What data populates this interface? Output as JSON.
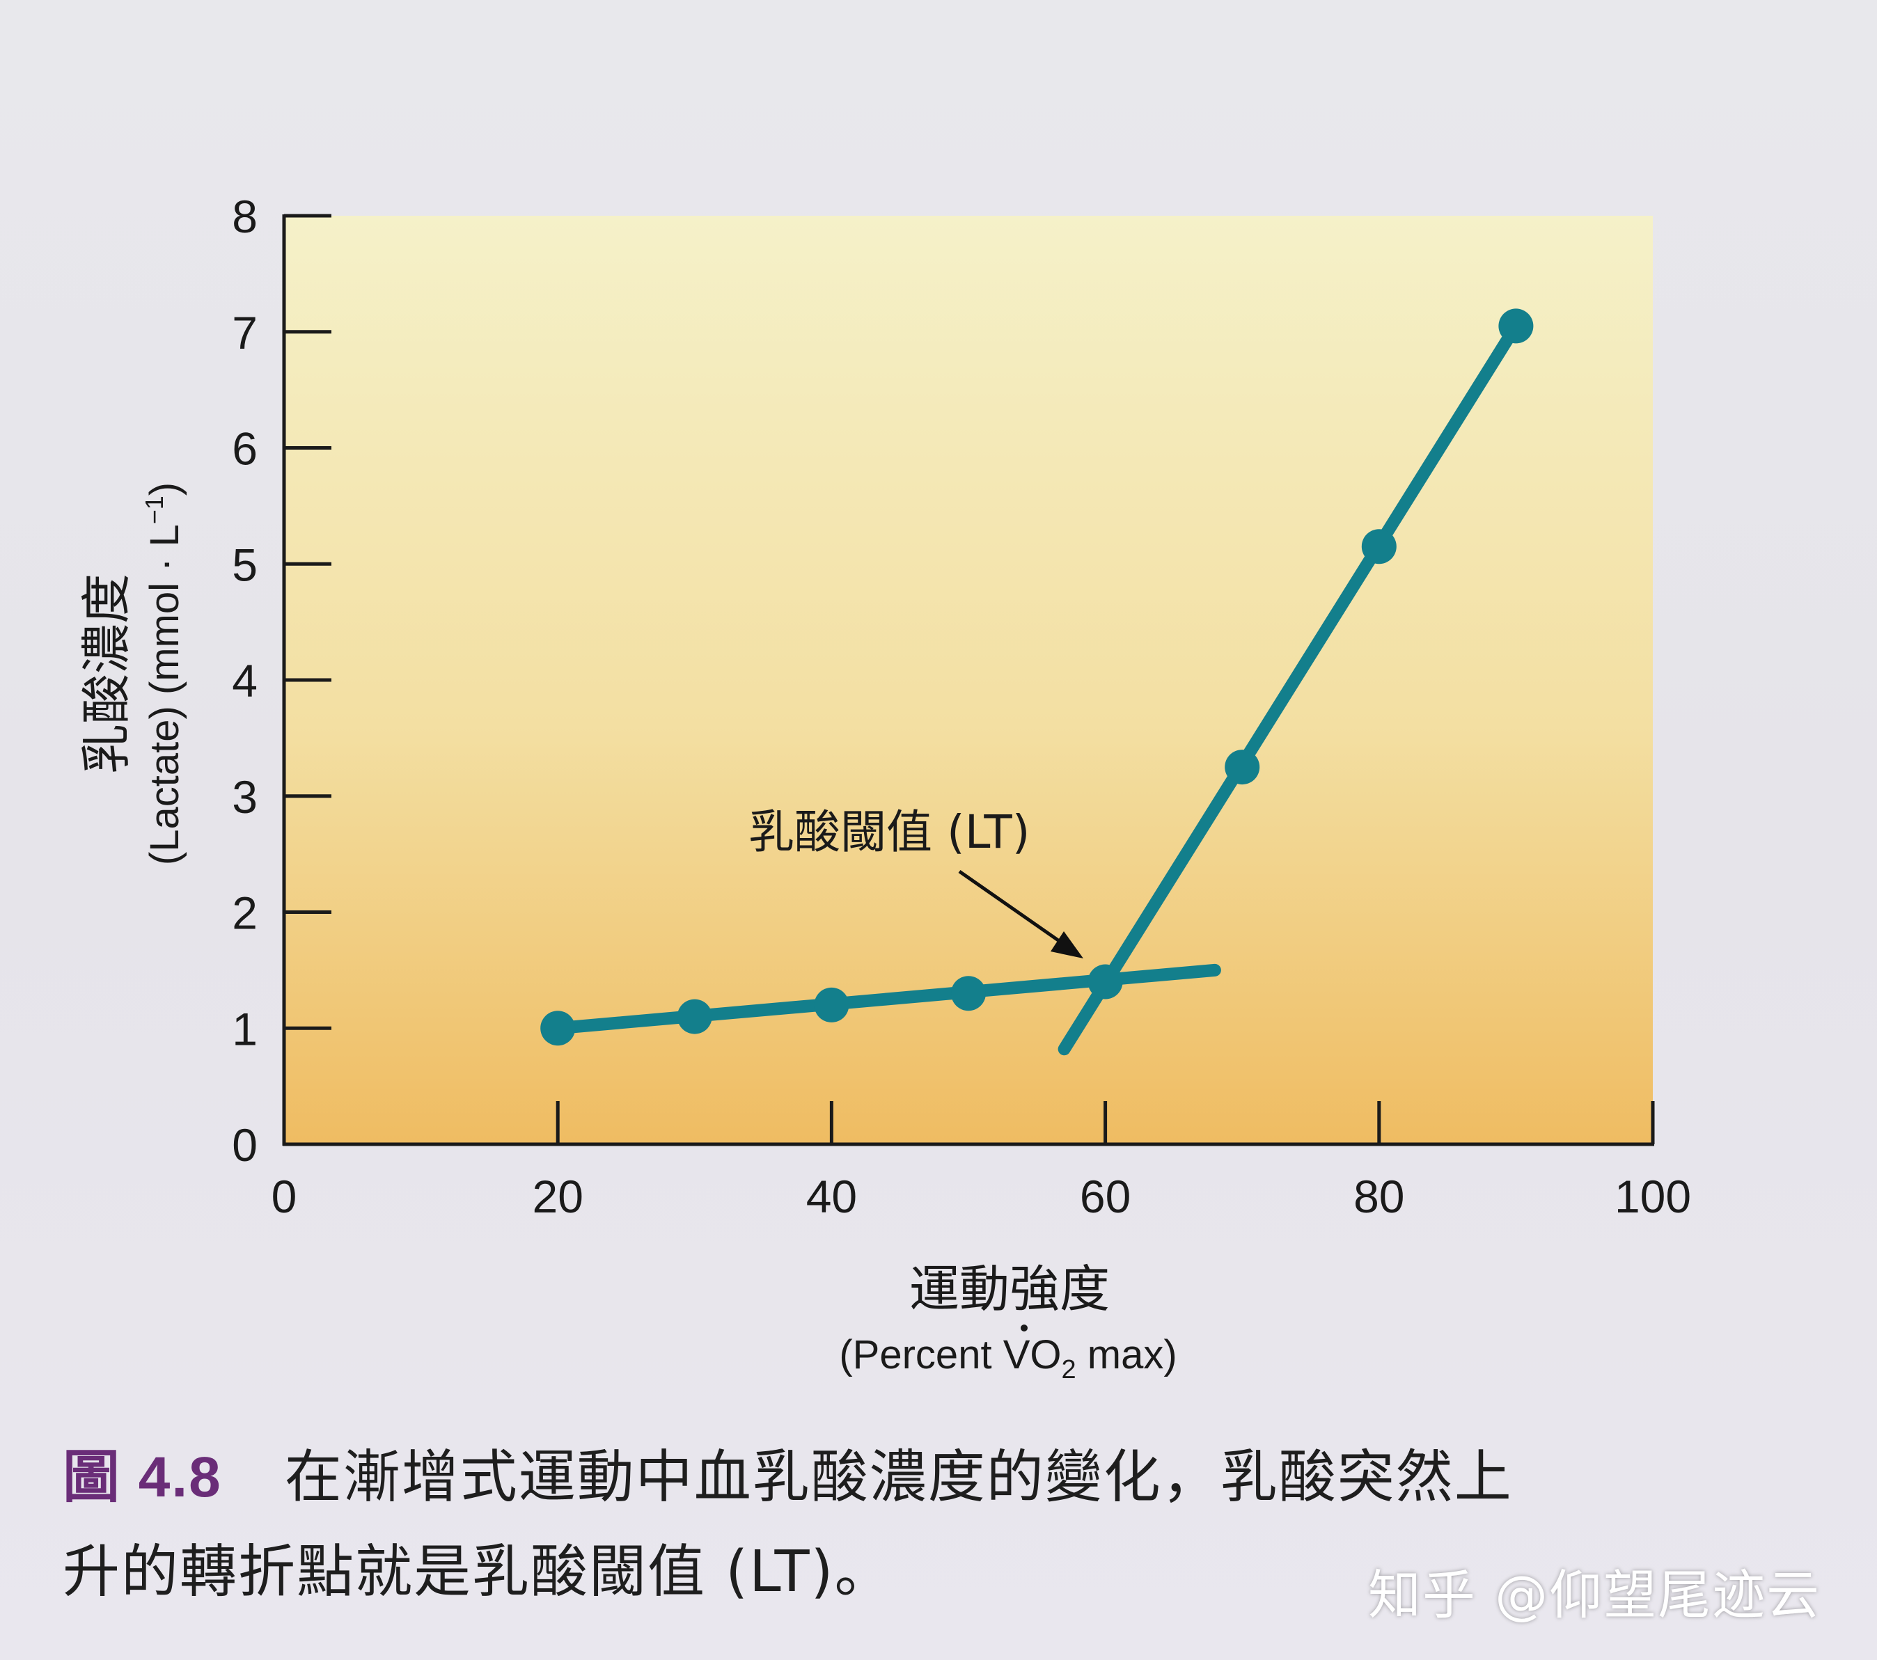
{
  "chart_data": {
    "type": "line",
    "xlabel_zh": "運動強度",
    "xlabel_en_prefix": "(Percent ",
    "xlabel_en_vo": "V",
    "xlabel_en_o": "O",
    "xlabel_en_sub": "2",
    "xlabel_en_suffix": " max)",
    "ylabel_zh": "乳酸濃度",
    "ylabel_en": "(Lactate) (mmol · L",
    "ylabel_en_sup": "−1",
    "ylabel_en_close": ")",
    "xlim": [
      0,
      100
    ],
    "ylim": [
      0,
      8
    ],
    "xticks": [
      "0",
      "20",
      "40",
      "60",
      "80",
      "100"
    ],
    "yticks": [
      "0",
      "1",
      "2",
      "3",
      "4",
      "5",
      "6",
      "7",
      "8"
    ],
    "series": [
      {
        "points": [
          {
            "x": 20,
            "y": 1.0
          },
          {
            "x": 30,
            "y": 1.1
          },
          {
            "x": 40,
            "y": 1.2
          },
          {
            "x": 50,
            "y": 1.3
          },
          {
            "x": 60,
            "y": 1.4
          },
          {
            "x": 70,
            "y": 3.25
          },
          {
            "x": 80,
            "y": 5.15
          },
          {
            "x": 90,
            "y": 7.05
          }
        ]
      }
    ],
    "fit_lines": [
      {
        "from": {
          "x": 20,
          "y": 1.0
        },
        "to": {
          "x": 68,
          "y": 1.5
        }
      },
      {
        "from": {
          "x": 57,
          "y": 0.82
        },
        "to": {
          "x": 90,
          "y": 7.05
        }
      }
    ],
    "annotation": {
      "label": "乳酸閾值 (LT)",
      "point": {
        "x": 60,
        "y": 1.4
      }
    },
    "colors": {
      "line": "#137f8c",
      "plot_top": "#f5f1c9",
      "plot_bottom": "#efbc62",
      "axis": "#1a1a1a"
    }
  },
  "caption": {
    "figure_number": "圖 4.8",
    "line1": "在漸增式運動中血乳酸濃度的變化，乳酸突然上",
    "line2": "升的轉折點就是乳酸閾值 (LT)。"
  },
  "watermark": "知乎 @仰望尾迹云"
}
